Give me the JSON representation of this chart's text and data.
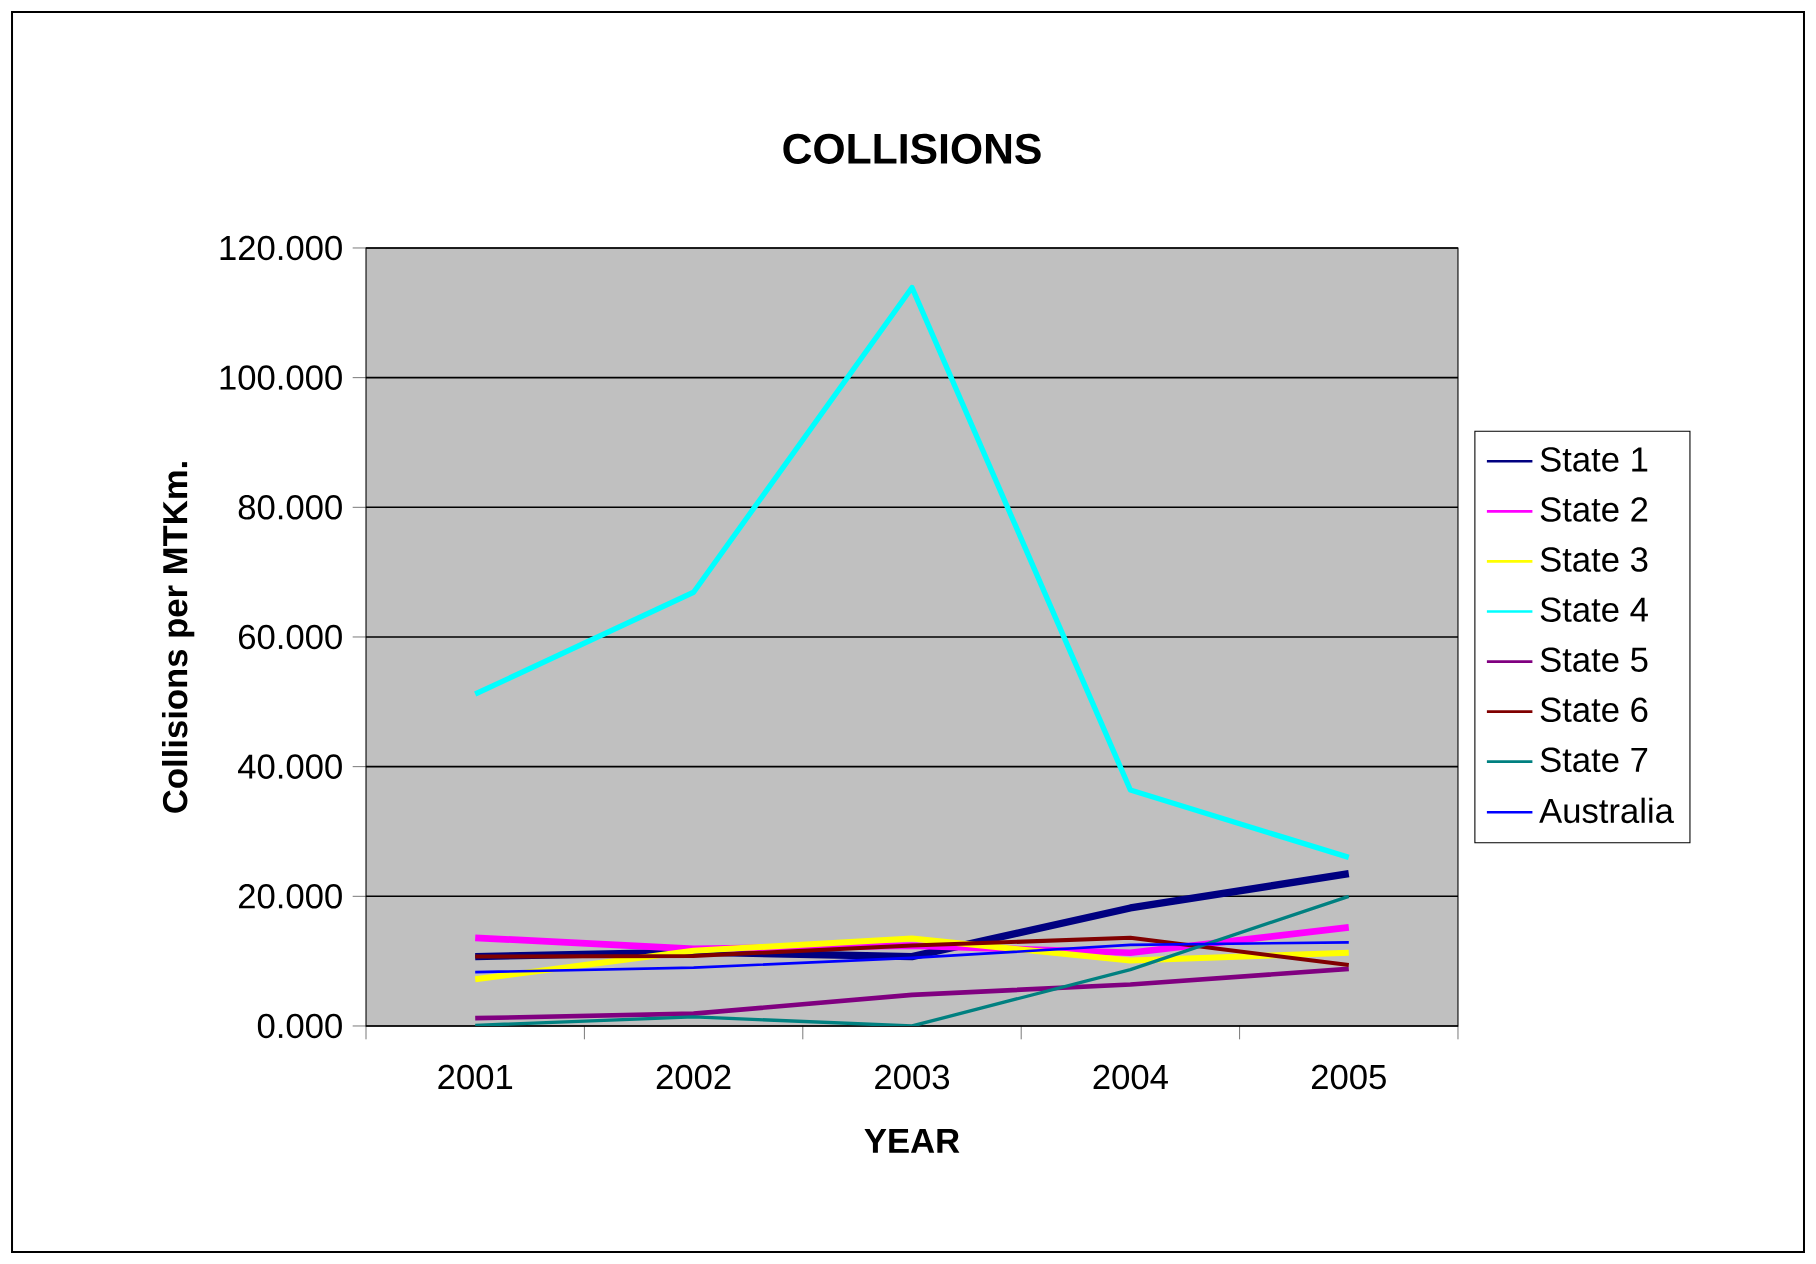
{
  "chart_data": {
    "type": "line",
    "title": "COLLISIONS",
    "xlabel": "YEAR",
    "ylabel": "Collisions per MTKm.",
    "categories": [
      "2001",
      "2002",
      "2003",
      "2004",
      "2005"
    ],
    "ylim": [
      0,
      120
    ],
    "yticks": [
      {
        "value": 0,
        "label": "0.000"
      },
      {
        "value": 20,
        "label": "20.000"
      },
      {
        "value": 40,
        "label": "40.000"
      },
      {
        "value": 60,
        "label": "60.000"
      },
      {
        "value": 80,
        "label": "80.000"
      },
      {
        "value": 100,
        "label": "100.000"
      },
      {
        "value": 120,
        "label": "120.000"
      }
    ],
    "grid": "y",
    "legend": "right",
    "series": [
      {
        "name": "State 1",
        "color": "#000080",
        "values": [
          10.7,
          11.4,
          10.7,
          18.2,
          23.5
        ]
      },
      {
        "name": "State 2",
        "color": "#ff00ff",
        "values": [
          13.6,
          11.9,
          12.4,
          11.3,
          15.2
        ]
      },
      {
        "name": "State 3",
        "color": "#ffff00",
        "values": [
          7.2,
          11.6,
          13.5,
          10.1,
          11.3
        ]
      },
      {
        "name": "State 4",
        "color": "#00ffff",
        "values": [
          51.2,
          66.9,
          113.9,
          36.4,
          26.0
        ]
      },
      {
        "name": "State 5",
        "color": "#800080",
        "values": [
          1.2,
          1.9,
          4.8,
          6.4,
          8.8
        ]
      },
      {
        "name": "State 6",
        "color": "#800000",
        "values": [
          10.7,
          10.8,
          12.4,
          13.6,
          9.4
        ]
      },
      {
        "name": "State 7",
        "color": "#008080",
        "values": [
          0.1,
          1.4,
          0.0,
          8.7,
          20.0
        ]
      },
      {
        "name": "Australia",
        "color": "#0000ff",
        "values": [
          8.3,
          9.0,
          10.5,
          12.5,
          12.9
        ]
      }
    ]
  }
}
